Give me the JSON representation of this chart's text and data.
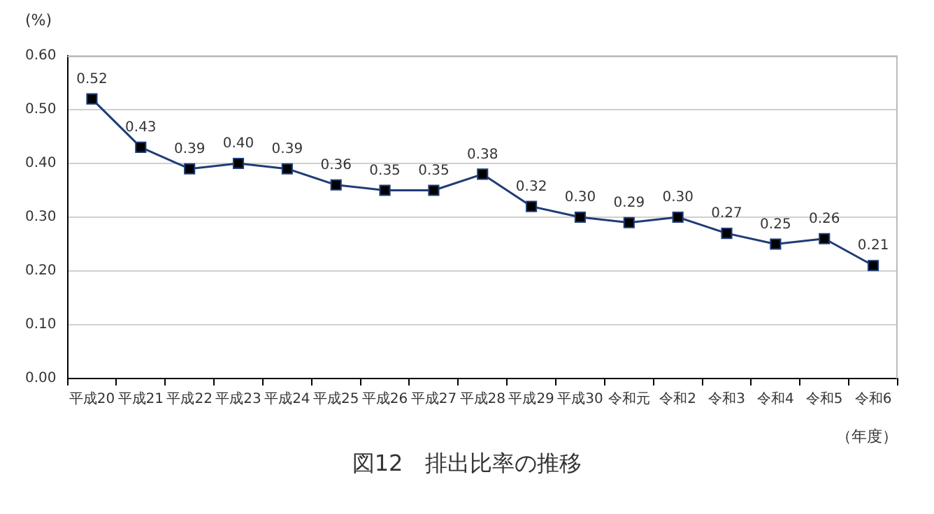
{
  "chart_data": {
    "type": "line",
    "title": "図12　排出比率の推移",
    "xlabel": "（年度）",
    "ylabel": "(%)",
    "categories": [
      "平成20",
      "平成21",
      "平成22",
      "平成23",
      "平成24",
      "平成25",
      "平成26",
      "平成27",
      "平成28",
      "平成29",
      "平成30",
      "令和元",
      "令和2",
      "令和3",
      "令和4",
      "令和5",
      "令和6"
    ],
    "series": [
      {
        "color": "#1f3c78",
        "values": [
          0.52,
          0.43,
          0.39,
          0.4,
          0.39,
          0.36,
          0.35,
          0.35,
          0.38,
          0.32,
          0.3,
          0.29,
          0.3,
          0.27,
          0.25,
          0.26,
          0.21
        ]
      }
    ],
    "value_labels": [
      "0.52",
      "0.43",
      "0.39",
      "0.40",
      "0.39",
      "0.36",
      "0.35",
      "0.35",
      "0.38",
      "0.32",
      "0.30",
      "0.29",
      "0.30",
      "0.27",
      "0.25",
      "0.26",
      "0.21"
    ],
    "ylim": [
      0,
      0.6
    ],
    "yticks": [
      {
        "value": 0,
        "label": "0.00"
      },
      {
        "value": 0.1,
        "label": "0.10"
      },
      {
        "value": 0.2,
        "label": "0.20"
      },
      {
        "value": 0.3,
        "label": "0.30"
      },
      {
        "value": 0.4,
        "label": "0.40"
      },
      {
        "value": 0.5,
        "label": "0.50"
      },
      {
        "value": 0.6,
        "label": "0.60"
      }
    ],
    "grid": "y",
    "legend": false,
    "marker": "square",
    "line_style": "solid"
  }
}
